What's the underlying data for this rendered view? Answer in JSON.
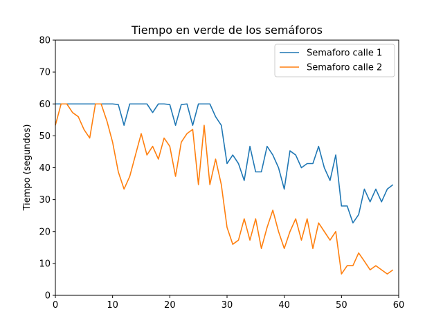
{
  "chart_data": {
    "type": "line",
    "title": "Tiempo en verde de los semáforos",
    "xlabel": "",
    "ylabel": "Tiempo (segundos)",
    "xlim": [
      0,
      60
    ],
    "ylim": [
      0,
      80
    ],
    "xticks": [
      0,
      10,
      20,
      30,
      40,
      50,
      60
    ],
    "yticks": [
      0,
      10,
      20,
      30,
      40,
      50,
      60,
      70,
      80
    ],
    "grid": false,
    "legend_position": "top-right",
    "x": [
      0,
      1,
      2,
      3,
      4,
      5,
      6,
      7,
      8,
      9,
      10,
      11,
      12,
      13,
      14,
      15,
      16,
      17,
      18,
      19,
      20,
      21,
      22,
      23,
      24,
      25,
      26,
      27,
      28,
      29,
      30,
      31,
      32,
      33,
      34,
      35,
      36,
      37,
      38,
      39,
      40,
      41,
      42,
      43,
      44,
      45,
      46,
      47,
      48,
      49,
      50,
      51,
      52,
      53,
      54,
      55,
      56,
      57,
      58,
      59
    ],
    "series": [
      {
        "name": "Semaforo calle 1",
        "color": "#1f77b4",
        "values": [
          60,
          60,
          60,
          60,
          60,
          60,
          60,
          60,
          60,
          60,
          60,
          59.8,
          53.3,
          60,
          60,
          60,
          60,
          57.3,
          60,
          60,
          59.8,
          53.3,
          59.8,
          60,
          53.3,
          60,
          60,
          60,
          56,
          53.3,
          41.3,
          44,
          41.3,
          36,
          46.7,
          38.7,
          38.7,
          46.7,
          44,
          40,
          33.3,
          45.3,
          44,
          40,
          41.3,
          41.3,
          46.7,
          40,
          36,
          44,
          28,
          28,
          22.7,
          25.3,
          33.3,
          29.3,
          33.3,
          29.3,
          33.3,
          34.7
        ]
      },
      {
        "name": "Semaforo calle 2",
        "color": "#ff7f0e",
        "values": [
          53.3,
          60,
          60,
          57.3,
          56,
          52,
          49.3,
          60,
          60,
          54.7,
          48,
          38.7,
          33.3,
          37.3,
          44,
          50.7,
          44,
          46.7,
          42.7,
          49.3,
          46.7,
          37.3,
          48,
          50.7,
          52,
          34.7,
          53.3,
          34.7,
          42.7,
          34.7,
          21.3,
          16,
          17.3,
          24,
          17.3,
          24,
          14.7,
          21.3,
          26.7,
          20,
          14.7,
          20,
          24,
          17.3,
          24,
          14.7,
          22.7,
          20,
          17.3,
          20,
          6.7,
          9.3,
          9.3,
          13.3,
          10.7,
          8,
          9.3,
          8,
          6.7,
          8
        ]
      }
    ]
  }
}
